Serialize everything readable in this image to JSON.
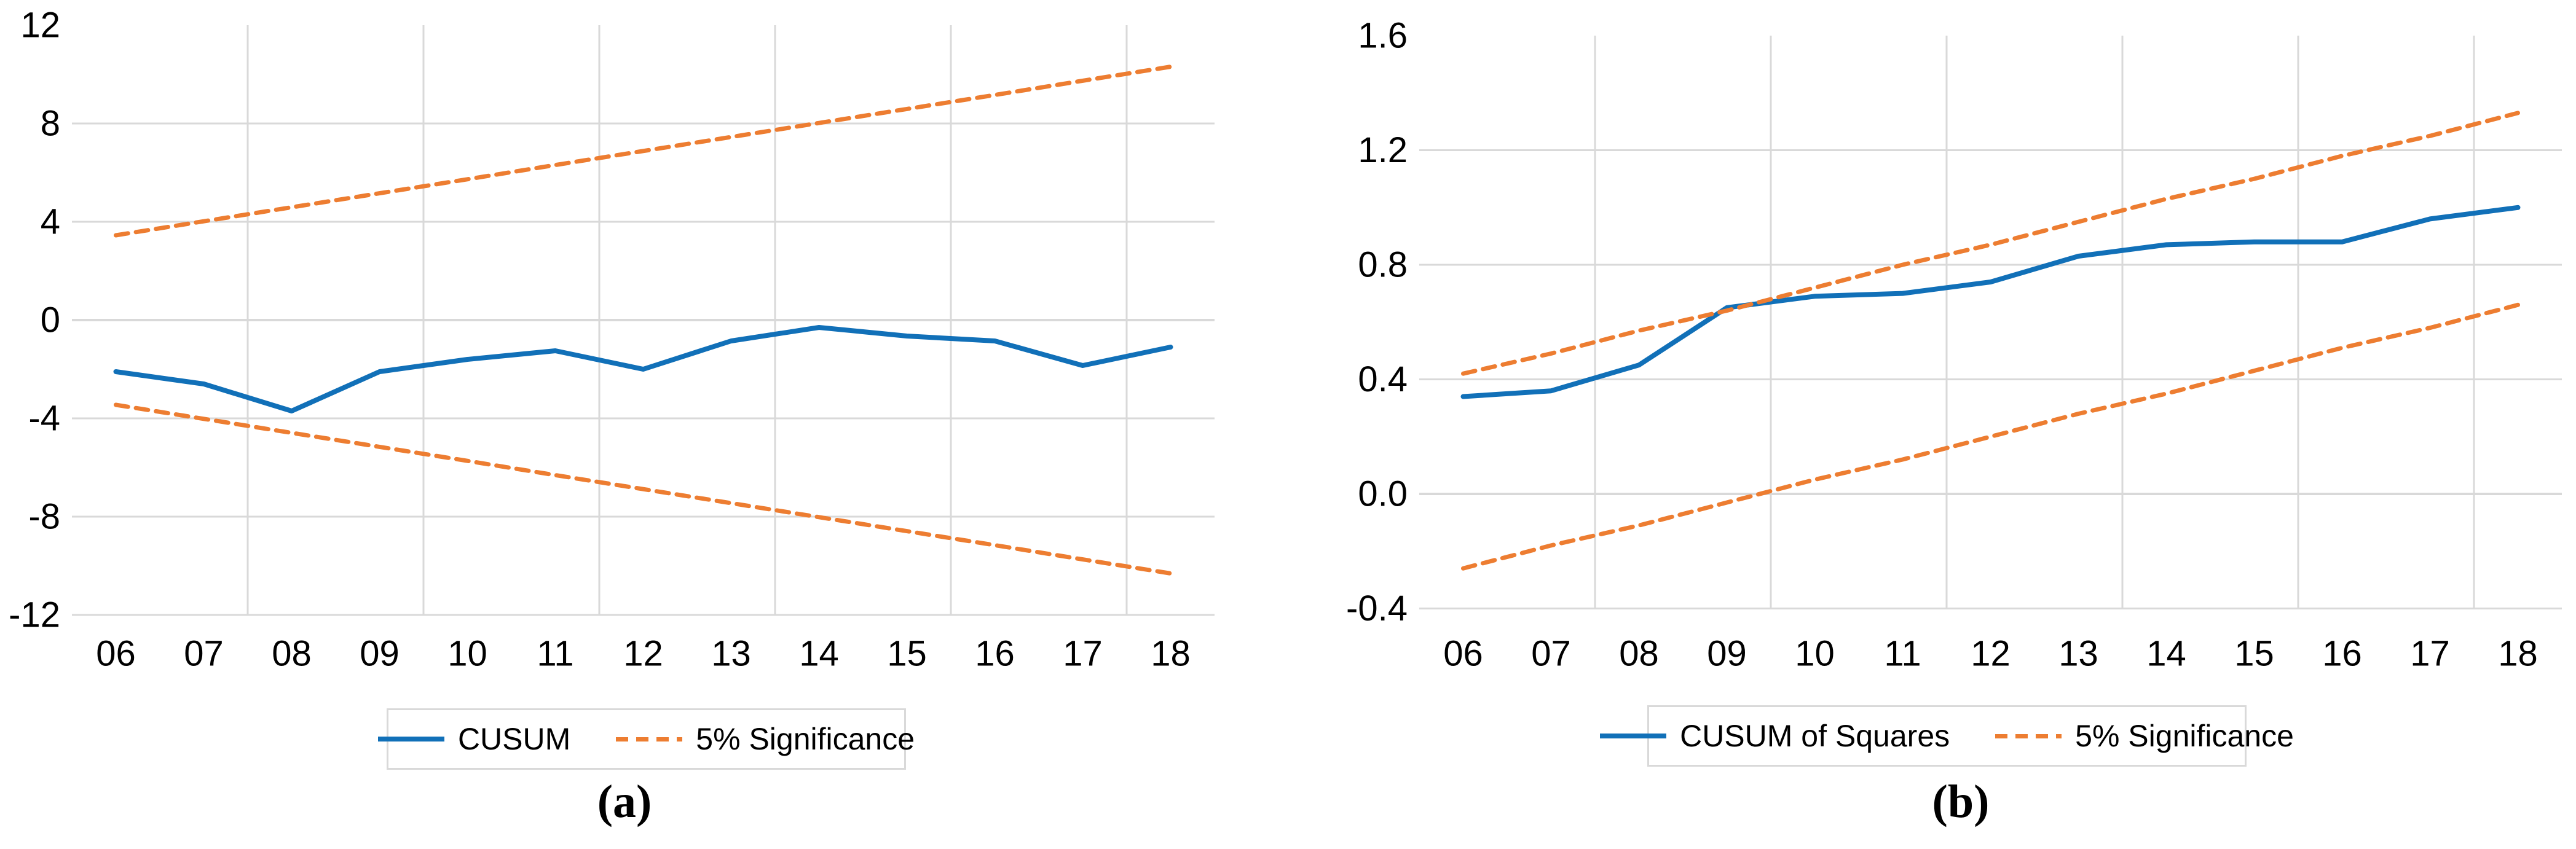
{
  "colors": {
    "series_blue": "#1170b8",
    "series_orange": "#ed7d31",
    "gridline": "#d9d9d9",
    "tick_text": "#000000",
    "legend_border": "#d9d9d9",
    "background": "#ffffff"
  },
  "chart_data": [
    {
      "type": "line",
      "title": "",
      "xlabel": "",
      "ylabel": "",
      "caption": "(a)",
      "categories": [
        "06",
        "07",
        "08",
        "09",
        "10",
        "11",
        "12",
        "13",
        "14",
        "15",
        "16",
        "17",
        "18"
      ],
      "x_tick_labels": [
        "06",
        "07",
        "08",
        "09",
        "10",
        "11",
        "12",
        "13",
        "14",
        "15",
        "16",
        "17",
        "18"
      ],
      "y_tick_labels": [
        "12",
        "8",
        "4",
        "0",
        "-4",
        "-8",
        "-12"
      ],
      "ylim": [
        -12,
        12
      ],
      "grid": "horizontal at major ticks except top; vertical every 2 categories",
      "legend_position": "bottom",
      "legend": [
        {
          "label": "CUSUM",
          "style": "solid",
          "color": "#1170b8"
        },
        {
          "label": "5% Significance",
          "style": "dashed",
          "color": "#ed7d31"
        }
      ],
      "series": [
        {
          "name": "CUSUM",
          "style": "solid",
          "color": "#1170b8",
          "values": [
            -2.1,
            -2.6,
            -3.7,
            -2.1,
            -1.6,
            -1.25,
            -2.0,
            -0.85,
            -0.3,
            -0.65,
            -0.85,
            -1.85,
            -1.1
          ]
        },
        {
          "name": "5% Significance (upper)",
          "style": "dashed",
          "color": "#ed7d31",
          "values": [
            3.45,
            4.02,
            4.59,
            5.16,
            5.73,
            6.31,
            6.88,
            7.45,
            8.02,
            8.59,
            9.16,
            9.74,
            10.31
          ]
        },
        {
          "name": "5% Significance (lower)",
          "style": "dashed",
          "color": "#ed7d31",
          "values": [
            -3.45,
            -4.02,
            -4.59,
            -5.16,
            -5.73,
            -6.31,
            -6.88,
            -7.45,
            -8.02,
            -8.59,
            -9.16,
            -9.74,
            -10.31
          ]
        }
      ]
    },
    {
      "type": "line",
      "title": "",
      "xlabel": "",
      "ylabel": "",
      "caption": "(b)",
      "categories": [
        "06",
        "07",
        "08",
        "09",
        "10",
        "11",
        "12",
        "13",
        "14",
        "15",
        "16",
        "17",
        "18"
      ],
      "x_tick_labels": [
        "06",
        "07",
        "08",
        "09",
        "10",
        "11",
        "12",
        "13",
        "14",
        "15",
        "16",
        "17",
        "18"
      ],
      "y_tick_labels": [
        "1.6",
        "1.2",
        "0.8",
        "0.4",
        "0.0",
        "-0.4"
      ],
      "ylim": [
        -0.4,
        1.6
      ],
      "grid": "horizontal at major ticks except top; vertical every 2 categories",
      "legend_position": "bottom",
      "legend": [
        {
          "label": "CUSUM of Squares",
          "style": "solid",
          "color": "#1170b8"
        },
        {
          "label": "5% Significance",
          "style": "dashed",
          "color": "#ed7d31"
        }
      ],
      "series": [
        {
          "name": "CUSUM of Squares",
          "style": "solid",
          "color": "#1170b8",
          "values": [
            0.34,
            0.36,
            0.45,
            0.65,
            0.69,
            0.7,
            0.74,
            0.83,
            0.87,
            0.88,
            0.88,
            0.96,
            1.0
          ]
        },
        {
          "name": "5% Significance (upper)",
          "style": "dashed",
          "color": "#ed7d31",
          "values": [
            0.42,
            0.49,
            0.57,
            0.64,
            0.72,
            0.8,
            0.87,
            0.95,
            1.03,
            1.1,
            1.18,
            1.25,
            1.33
          ]
        },
        {
          "name": "5% Significance (lower)",
          "style": "dashed",
          "color": "#ed7d31",
          "values": [
            -0.26,
            -0.18,
            -0.11,
            -0.03,
            0.05,
            0.12,
            0.2,
            0.28,
            0.35,
            0.43,
            0.51,
            0.58,
            0.66
          ]
        }
      ]
    }
  ]
}
